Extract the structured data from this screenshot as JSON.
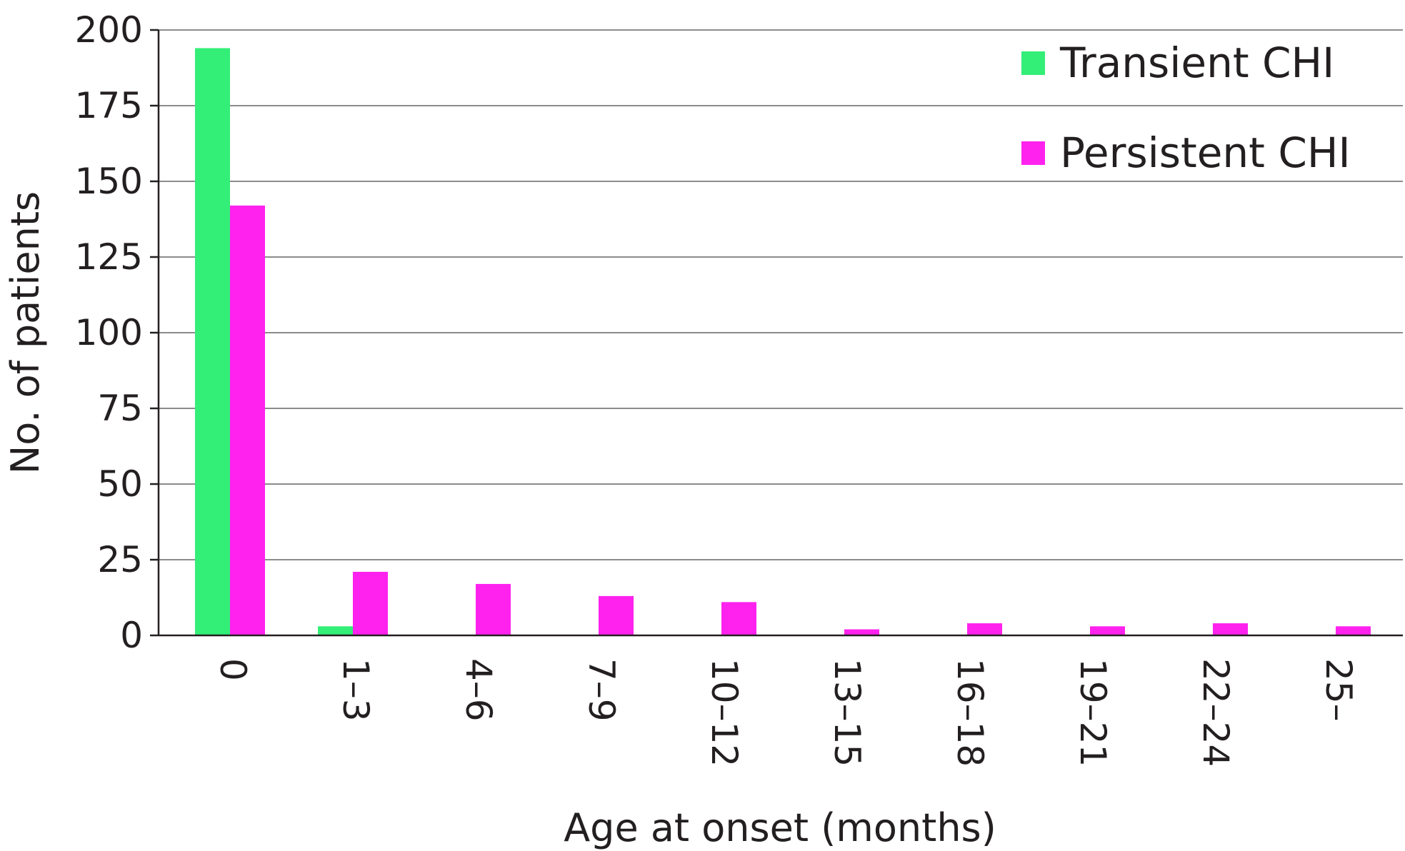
{
  "chart_data": {
    "type": "bar",
    "title": "",
    "xlabel": "Age at onset (months)",
    "ylabel": "No. of patients",
    "categories": [
      "0",
      "1–3",
      "4–6",
      "7–9",
      "10–12",
      "13–15",
      "16–18",
      "19–21",
      "22–24",
      "25–"
    ],
    "series": [
      {
        "name": "Transient CHI",
        "color": "#33ee77",
        "values": [
          194,
          3,
          0,
          0,
          0,
          0,
          0,
          0,
          0,
          0
        ]
      },
      {
        "name": "Persistent CHI",
        "color": "#ff22ee",
        "values": [
          142,
          21,
          17,
          13,
          11,
          2,
          4,
          3,
          4,
          3
        ]
      }
    ],
    "ylim": [
      0,
      200
    ],
    "yticks": [
      "0",
      "25",
      "50",
      "75",
      "100",
      "125",
      "150",
      "175",
      "200"
    ],
    "grid": true,
    "legend_position": "top-right",
    "x_tick_rotation": "vertical"
  }
}
